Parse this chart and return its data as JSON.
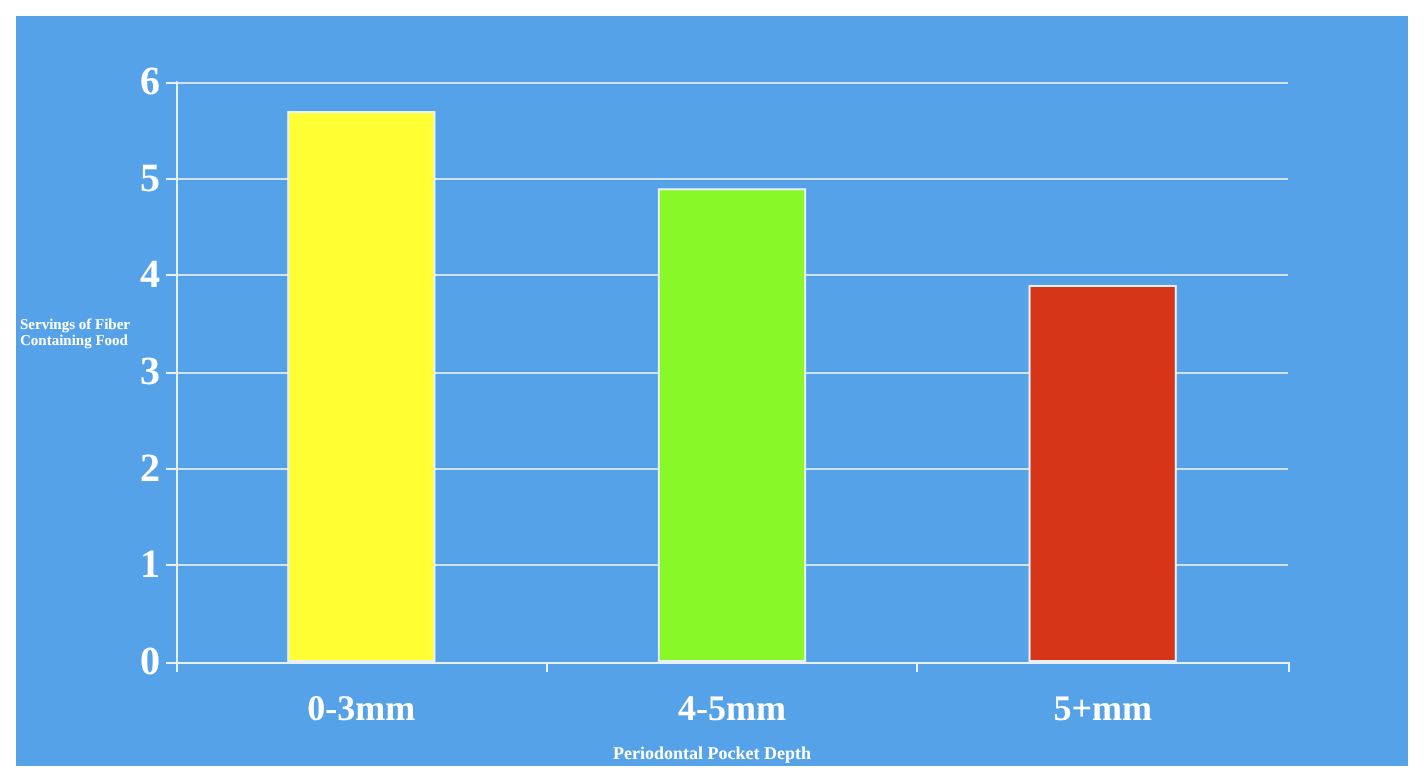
{
  "chart_data": {
    "type": "bar",
    "categories": [
      "0-3mm",
      "4-5mm",
      "5+mm"
    ],
    "values": [
      5.7,
      4.9,
      3.9
    ],
    "colors": [
      "#ffff33",
      "#88f829",
      "#d63517"
    ],
    "ylabel": "Servings of Fiber Containing Food",
    "xlabel": "Periodontal Pocket Depth",
    "ylim": [
      0,
      6
    ],
    "yticks": [
      0,
      1,
      2,
      3,
      4,
      5,
      6
    ],
    "grid": "y"
  }
}
